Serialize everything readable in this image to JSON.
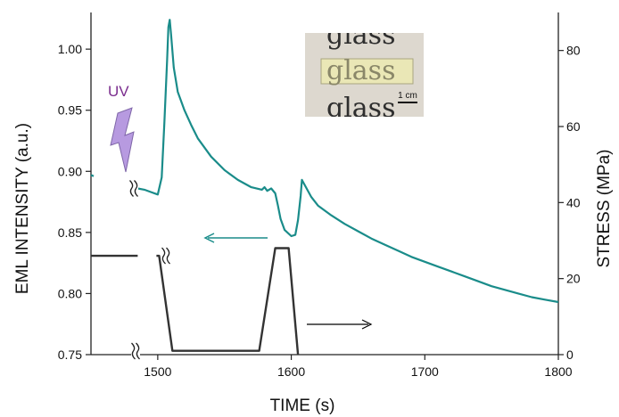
{
  "chart_data": {
    "type": "line",
    "xlabel": "TIME (s)",
    "ylabel": "EML INTENSITY (a.u.)",
    "y2label": "STRESS (MPa)",
    "xlim": [
      1450,
      1800
    ],
    "ylim": [
      0.75,
      1.03
    ],
    "y2lim": [
      0,
      90
    ],
    "x_ticks": [
      1500,
      1600,
      1700,
      1800
    ],
    "y_ticks": [
      0.75,
      0.8,
      0.85,
      0.9,
      0.95,
      1.0
    ],
    "y2_ticks": [
      0,
      20,
      40,
      60,
      80
    ],
    "axis_breaks": true,
    "grid": false,
    "series": [
      {
        "axis": "left",
        "color": "#1a8c8a",
        "segments": [
          [
            [
              1450,
              0.897
            ],
            [
              1452,
              0.896
            ]
          ],
          [
            [
              1480,
              0.888
            ],
            [
              1485,
              0.886
            ],
            [
              1490,
              0.885
            ],
            [
              1495,
              0.883
            ],
            [
              1500,
              0.881
            ],
            [
              1503,
              0.895
            ],
            [
              1505,
              0.94
            ],
            [
              1507,
              0.99
            ],
            [
              1508,
              1.018
            ],
            [
              1509,
              1.024
            ],
            [
              1510,
              1.012
            ],
            [
              1512,
              0.985
            ],
            [
              1515,
              0.965
            ],
            [
              1520,
              0.95
            ],
            [
              1525,
              0.938
            ],
            [
              1530,
              0.927
            ],
            [
              1540,
              0.912
            ],
            [
              1550,
              0.901
            ],
            [
              1560,
              0.893
            ],
            [
              1570,
              0.887
            ],
            [
              1578,
              0.885
            ],
            [
              1580,
              0.887
            ],
            [
              1582,
              0.884
            ],
            [
              1585,
              0.886
            ],
            [
              1588,
              0.882
            ],
            [
              1590,
              0.872
            ],
            [
              1592,
              0.861
            ],
            [
              1595,
              0.852
            ],
            [
              1600,
              0.847
            ],
            [
              1603,
              0.848
            ],
            [
              1605,
              0.86
            ],
            [
              1607,
              0.88
            ],
            [
              1608,
              0.893
            ],
            [
              1610,
              0.889
            ],
            [
              1615,
              0.879
            ],
            [
              1620,
              0.872
            ],
            [
              1630,
              0.864
            ],
            [
              1640,
              0.857
            ],
            [
              1650,
              0.851
            ],
            [
              1660,
              0.845
            ],
            [
              1670,
              0.84
            ],
            [
              1680,
              0.835
            ],
            [
              1690,
              0.83
            ],
            [
              1700,
              0.826
            ],
            [
              1710,
              0.822
            ],
            [
              1720,
              0.818
            ],
            [
              1730,
              0.814
            ],
            [
              1740,
              0.81
            ],
            [
              1750,
              0.806
            ],
            [
              1760,
              0.803
            ],
            [
              1770,
              0.8
            ],
            [
              1780,
              0.797
            ],
            [
              1790,
              0.795
            ],
            [
              1800,
              0.793
            ]
          ]
        ]
      },
      {
        "axis": "right",
        "color": "#333333",
        "segments": [
          [
            [
              1450,
              26
            ],
            [
              1485,
              26
            ]
          ],
          [
            [
              1499,
              26
            ],
            [
              1501,
              26
            ],
            [
              1511,
              1
            ],
            [
              1576,
              1
            ],
            [
              1588,
              28
            ],
            [
              1598,
              28
            ],
            [
              1605,
              0
            ]
          ]
        ]
      }
    ],
    "annotations": {
      "uv_label": "UV",
      "uv_color": "#7b2d8e",
      "bolt_color": "#b79ae0",
      "arrow_left_color": "#1a8c8a",
      "arrow_right_color": "#000000"
    },
    "inset": {
      "words": [
        "glass",
        "glass",
        "glass"
      ],
      "scale_bar_label": "1 cm"
    }
  }
}
